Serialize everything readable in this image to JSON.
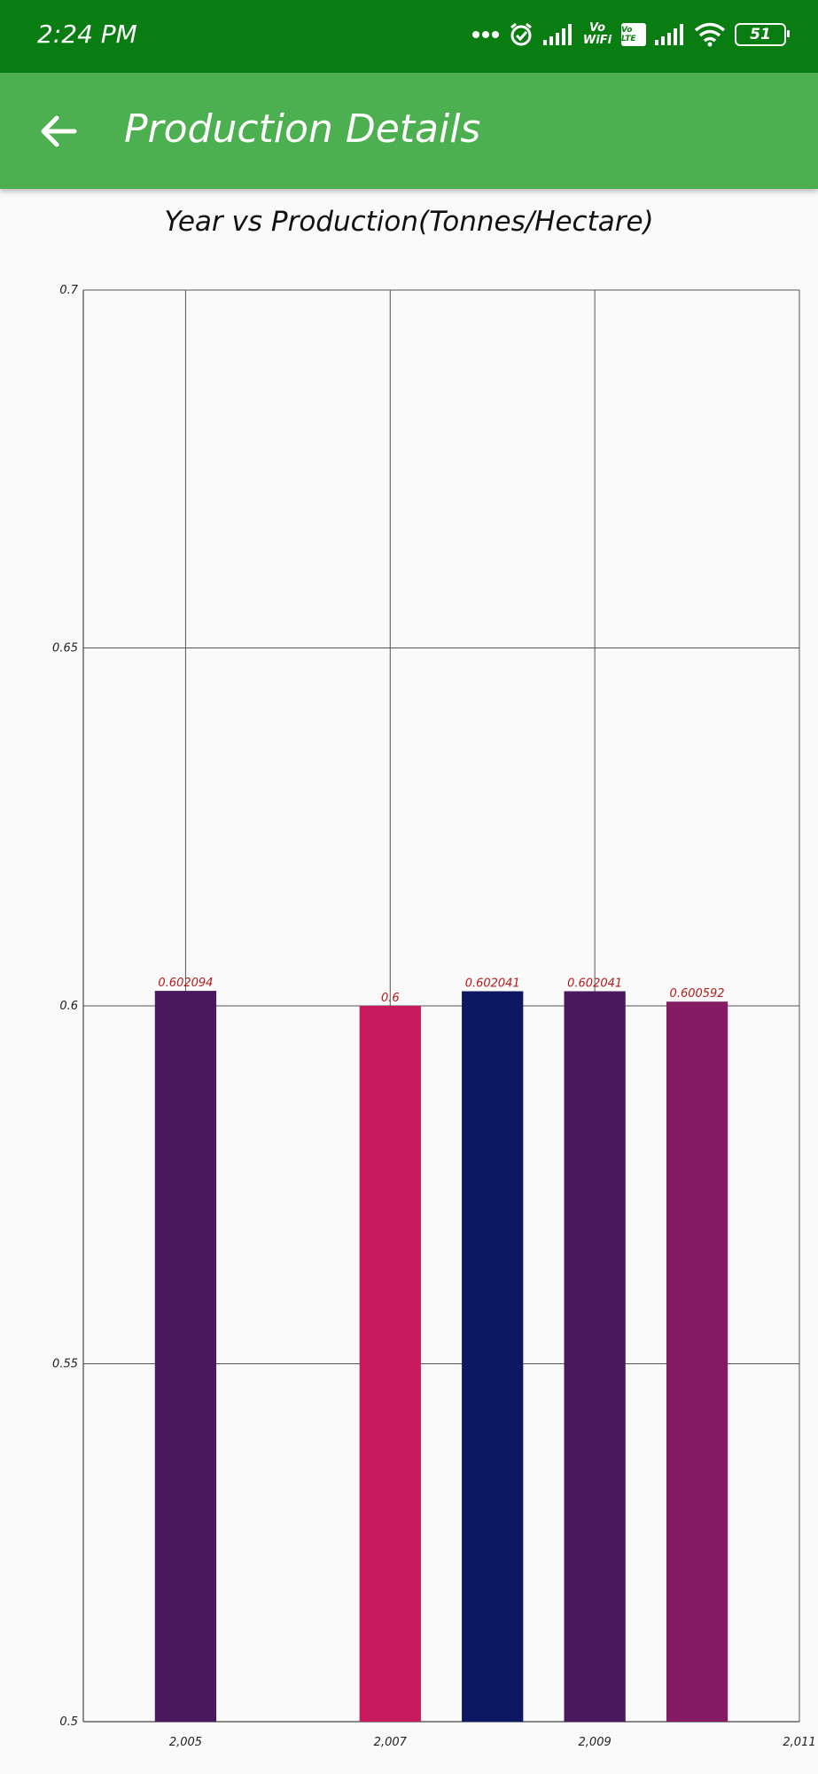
{
  "status_bar": {
    "time": "2:24 PM",
    "icons": [
      "more-dots-icon",
      "alarm-icon",
      "signal-icon",
      "vowifi-icon",
      "volte-icon",
      "signal-icon",
      "wifi-icon",
      "battery-icon"
    ],
    "vowifi_text": "Vo WiFi",
    "volte_text": "Vo LTE",
    "battery_level": "51"
  },
  "app_bar": {
    "back_icon": "arrow-left-icon",
    "title": "Production Details",
    "color": "#4caf50"
  },
  "chart_data": {
    "type": "bar",
    "title": "Year vs Production(Tonnes/Hectare)",
    "xlabel": "",
    "ylabel": "",
    "x": [
      2005,
      2007,
      2008,
      2009,
      2010
    ],
    "values": [
      0.602094,
      0.6,
      0.602041,
      0.602041,
      0.600592
    ],
    "value_labels": [
      "0.602094",
      "0.6",
      "0.602041",
      "0.602041",
      "0.600592"
    ],
    "bar_colors": [
      "#4a185f",
      "#c81a5e",
      "#0c1862",
      "#4a185f",
      "#861a64"
    ],
    "value_label_color": "#b71c1c",
    "xlim": [
      2004,
      2011
    ],
    "ylim": [
      0.5,
      0.7
    ],
    "x_ticks": [
      2005,
      2007,
      2009,
      2011
    ],
    "x_tick_labels": [
      "2,005",
      "2,007",
      "2,009",
      "2,011"
    ],
    "y_ticks": [
      0.5,
      0.55,
      0.6,
      0.65,
      0.7
    ],
    "y_tick_labels": [
      "0.5",
      "0.55",
      "0.6",
      "0.65",
      "0.7"
    ],
    "grid": true,
    "legend": "none"
  }
}
